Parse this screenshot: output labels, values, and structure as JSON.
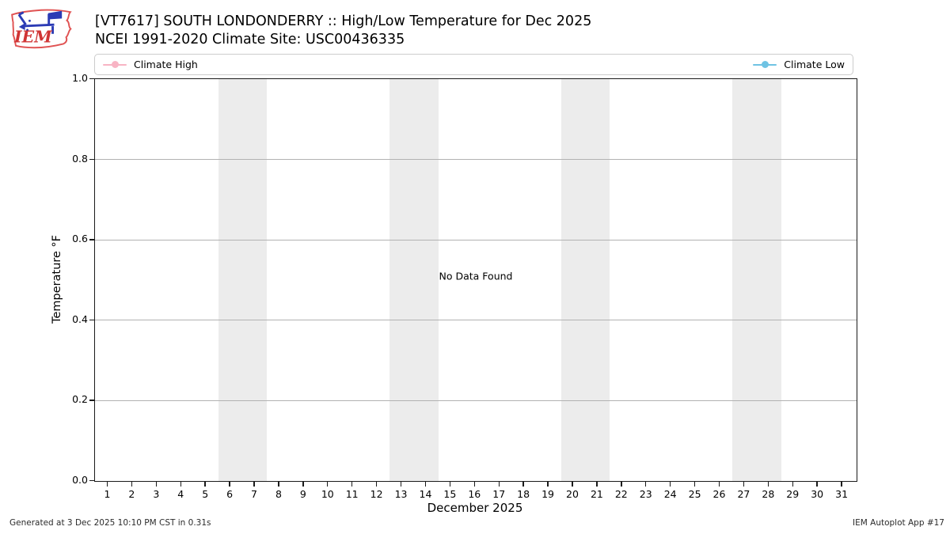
{
  "header": {
    "title": "[VT7617] SOUTH LONDONDERRY :: High/Low Temperature for Dec 2025",
    "subtitle": "NCEI 1991-2020 Climate Site: USC00436335",
    "logo_text": "IEM"
  },
  "legend": {
    "items": [
      {
        "label": "Climate High",
        "color": "#f8b4c4",
        "position": "left"
      },
      {
        "label": "Climate Low",
        "color": "#6fc3e3",
        "position": "right"
      }
    ]
  },
  "chart_data": {
    "type": "line",
    "title": "[VT7617] SOUTH LONDONDERRY :: High/Low Temperature for Dec 2025",
    "subtitle": "NCEI 1991-2020 Climate Site: USC00436335",
    "xlabel": "December 2025",
    "ylabel": "Temperature °F",
    "ylim": [
      0.0,
      1.0
    ],
    "yticks": [
      "0.0",
      "0.2",
      "0.4",
      "0.6",
      "0.8",
      "1.0"
    ],
    "xticks": [
      "1",
      "2",
      "3",
      "4",
      "5",
      "6",
      "7",
      "8",
      "9",
      "10",
      "11",
      "12",
      "13",
      "14",
      "15",
      "16",
      "17",
      "18",
      "19",
      "20",
      "21",
      "22",
      "23",
      "24",
      "25",
      "26",
      "27",
      "28",
      "29",
      "30",
      "31"
    ],
    "xlim": [
      0.5,
      31.5
    ],
    "grid": true,
    "legend_position": "top, full-width, split left/right",
    "series": [
      {
        "name": "Climate High",
        "color": "#f8b4c4",
        "x": [],
        "values": []
      },
      {
        "name": "Climate Low",
        "color": "#6fc3e3",
        "x": [],
        "values": []
      }
    ],
    "no_data_text": "No Data Found",
    "weekend_bands": [
      [
        5.5,
        7.5
      ],
      [
        12.5,
        14.5
      ],
      [
        19.5,
        21.5
      ],
      [
        26.5,
        28.5
      ]
    ],
    "band_color": "#ececec",
    "gridline_color": "#b2b2b2"
  },
  "footer": {
    "generated": "Generated at 3 Dec 2025 10:10 PM CST in 0.31s",
    "app": "IEM Autoplot App #17"
  }
}
